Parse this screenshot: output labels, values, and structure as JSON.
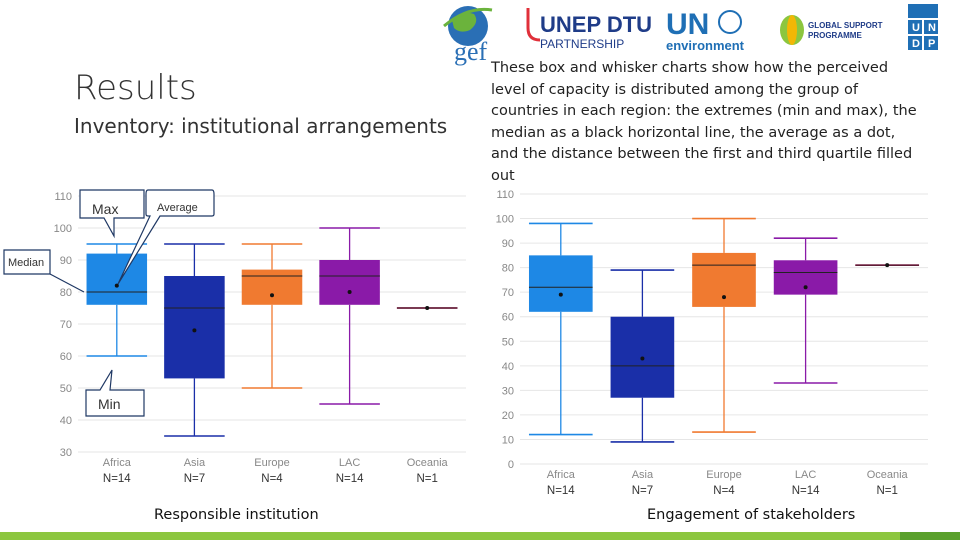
{
  "slide": {
    "title": "Results",
    "subtitle": "Inventory: institutional arrangements",
    "description": "These box and whisker charts show how the perceived level of capacity is distributed among the group of countries in each region: the extremes (min and max), the median as a black horizontal line, the average as a dot, and the distance between the first and third quartile filled out",
    "caption_left": "Responsible institution",
    "caption_right": "Engagement of stakeholders"
  },
  "logos": {
    "gef": "gef",
    "unep_dtu_top": "UNEP DTU",
    "unep_dtu_bottom": "PARTNERSHIP",
    "un_top": "UN",
    "un_bottom": "environment",
    "gsp_top": "GLOBAL SUPPORT",
    "gsp_bottom": "PROGRAMME",
    "undp": [
      "U",
      "N",
      "D",
      "P"
    ]
  },
  "callouts": {
    "max": "Max",
    "average": "Average",
    "median": "Median",
    "min": "Min"
  },
  "colors": {
    "Africa": "#1e88e5",
    "Asia": "#1a2fa8",
    "Europe": "#f07a30",
    "LAC": "#8a1aa8",
    "Oceania": "#c2185b",
    "callout_fill": "#ffffff",
    "callout_stroke": "#1f3864",
    "bottom_bar": "#8cc63f"
  },
  "chart_data": [
    {
      "type": "box",
      "categories": [
        "Africa",
        "Asia",
        "Europe",
        "LAC",
        "Oceania"
      ],
      "n_labels": [
        "N=14",
        "N=7",
        "N=4",
        "N=14",
        "N=1"
      ],
      "ylim": [
        30,
        110
      ],
      "yticks": [
        30,
        40,
        50,
        60,
        70,
        80,
        90,
        100,
        110
      ],
      "boxes": [
        {
          "min": 60,
          "q1": 76,
          "median": 80,
          "q3": 92,
          "max": 95,
          "mean": 82
        },
        {
          "min": 35,
          "q1": 53,
          "median": 75,
          "q3": 85,
          "max": 95,
          "mean": 68
        },
        {
          "min": 50,
          "q1": 76,
          "median": 85,
          "q3": 87,
          "max": 95,
          "mean": 79
        },
        {
          "min": 45,
          "q1": 76,
          "median": 85,
          "q3": 90,
          "max": 100,
          "mean": 80
        },
        {
          "min": 75,
          "q1": 75,
          "median": 75,
          "q3": 75,
          "max": 75,
          "mean": 75
        }
      ]
    },
    {
      "type": "box",
      "categories": [
        "Africa",
        "Asia",
        "Europe",
        "LAC",
        "Oceania"
      ],
      "n_labels": [
        "N=14",
        "N=7",
        "N=4",
        "N=14",
        "N=1"
      ],
      "ylim": [
        0,
        110
      ],
      "yticks": [
        0,
        10,
        20,
        30,
        40,
        50,
        60,
        70,
        80,
        90,
        100,
        110
      ],
      "boxes": [
        {
          "min": 12,
          "q1": 62,
          "median": 72,
          "q3": 85,
          "max": 98,
          "mean": 69
        },
        {
          "min": 9,
          "q1": 27,
          "median": 40,
          "q3": 60,
          "max": 79,
          "mean": 43
        },
        {
          "min": 13,
          "q1": 64,
          "median": 81,
          "q3": 86,
          "max": 100,
          "mean": 68
        },
        {
          "min": 33,
          "q1": 69,
          "median": 78,
          "q3": 83,
          "max": 92,
          "mean": 72
        },
        {
          "min": 81,
          "q1": 81,
          "median": 81,
          "q3": 81,
          "max": 81,
          "mean": 81
        }
      ]
    }
  ]
}
